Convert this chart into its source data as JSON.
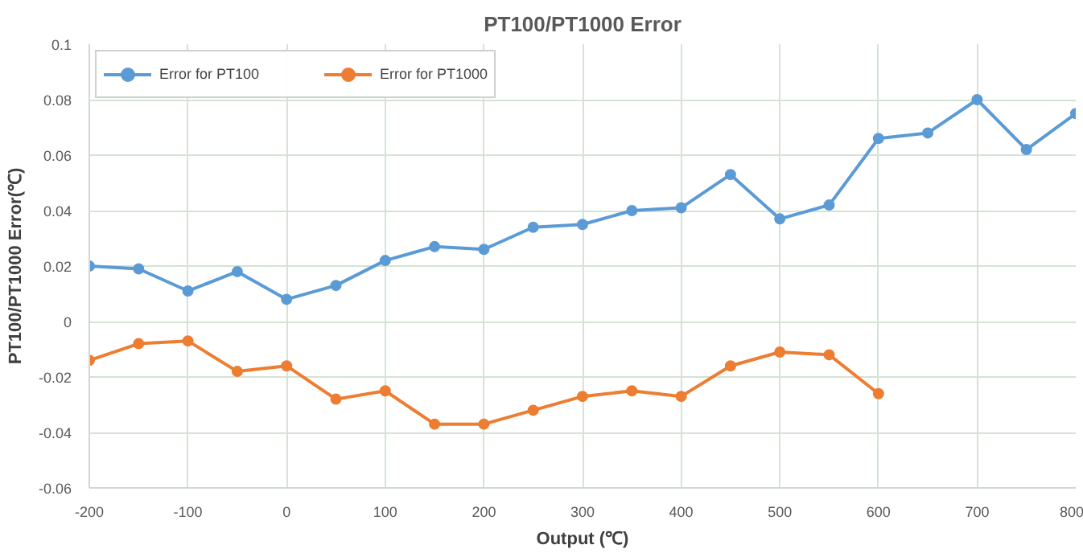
{
  "chart_data": {
    "type": "line",
    "title": "PT100/PT1000 Error",
    "xlabel": "Output (℃)",
    "ylabel": "PT100/PT1000 Error(℃)",
    "x": [
      -200,
      -150,
      -100,
      -50,
      0,
      50,
      100,
      150,
      200,
      250,
      300,
      350,
      400,
      450,
      500,
      550,
      600,
      650,
      700,
      750,
      800
    ],
    "series": [
      {
        "name": "Error for PT100",
        "color": "#5b9bd5",
        "values": [
          0.02,
          0.019,
          0.011,
          0.018,
          0.008,
          0.013,
          0.022,
          0.027,
          0.026,
          0.034,
          0.035,
          0.04,
          0.041,
          0.053,
          0.037,
          0.042,
          0.066,
          0.068,
          0.08,
          0.062,
          0.075
        ]
      },
      {
        "name": "Error for PT1000",
        "color": "#ed7d31",
        "values": [
          -0.014,
          -0.008,
          -0.007,
          -0.018,
          -0.016,
          -0.028,
          -0.025,
          -0.037,
          -0.037,
          -0.032,
          -0.027,
          -0.025,
          -0.027,
          -0.016,
          -0.011,
          -0.012,
          -0.026,
          null,
          null,
          null,
          null
        ]
      }
    ],
    "xlim": [
      -200,
      800
    ],
    "xticks": [
      -200,
      -100,
      0,
      100,
      200,
      300,
      400,
      500,
      600,
      700,
      800
    ],
    "ylim": [
      -0.06,
      0.1
    ],
    "yticks": [
      -0.06,
      -0.04,
      -0.02,
      0,
      0.02,
      0.04,
      0.06,
      0.08,
      0.1
    ],
    "grid": true,
    "legend": "top left",
    "marker": "circle",
    "line_style": "solid"
  }
}
